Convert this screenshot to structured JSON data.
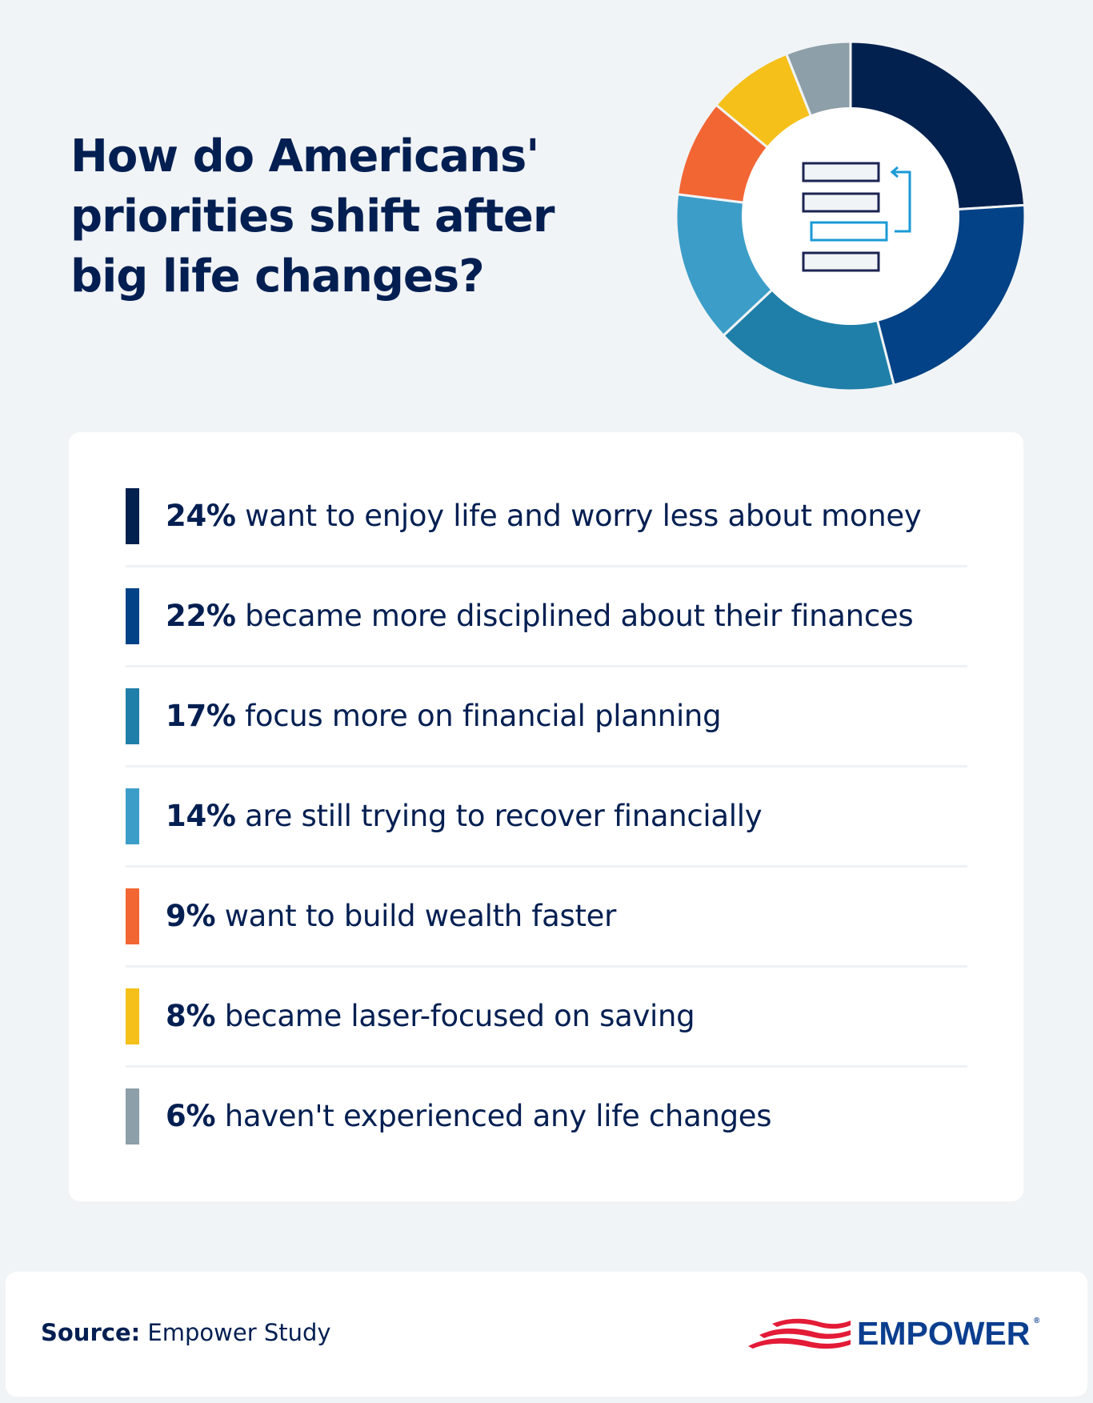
{
  "header": {
    "title": "How do Americans' priorities shift after big life changes?"
  },
  "chart_data": {
    "type": "pie",
    "subtype": "donut",
    "title": "How do Americans' priorities shift after big life changes?",
    "categories": [
      "want to enjoy life and worry less about money",
      "became more disciplined about their finances",
      "focus more on financial planning",
      "are still trying to recover financially",
      "want to build wealth faster",
      "became laser-focused on saving",
      "haven't experienced any life changes"
    ],
    "values": [
      24,
      22,
      17,
      14,
      9,
      8,
      6
    ],
    "unit": "%",
    "colors": [
      "#03214f",
      "#034286",
      "#1f7fa8",
      "#3c9ec8",
      "#f26634",
      "#f5c019",
      "#8d9fa8"
    ],
    "start_angle": "12 o'clock, clockwise",
    "center_icon": "reorder-list-icon",
    "legend_position": "below"
  },
  "legend": {
    "items": [
      {
        "pct": "24%",
        "label": "want to enjoy life and worry less about money",
        "color": "#03214f"
      },
      {
        "pct": "22%",
        "label": "became more disciplined about their finances",
        "color": "#034286"
      },
      {
        "pct": "17%",
        "label": "focus more on financial planning",
        "color": "#1f7fa8"
      },
      {
        "pct": "14%",
        "label": "are still trying to recover financially",
        "color": "#3c9ec8"
      },
      {
        "pct": "9%",
        "label": "want to build wealth faster",
        "color": "#f26634"
      },
      {
        "pct": "8%",
        "label": "became laser-focused on saving",
        "color": "#f5c019"
      },
      {
        "pct": "6%",
        "label": "haven't experienced any life changes",
        "color": "#8d9fa8"
      }
    ]
  },
  "footer": {
    "source_label": "Source:",
    "source_value": " Empower Study",
    "logo_text": "EMPOWER",
    "logo_reg": "®"
  },
  "colors": {
    "background": "#f1f4f6",
    "navy_text": "#031f52",
    "brand_blue": "#0b3e8f",
    "brand_red": "#e31b37",
    "icon_accent": "#1a9ad6"
  }
}
